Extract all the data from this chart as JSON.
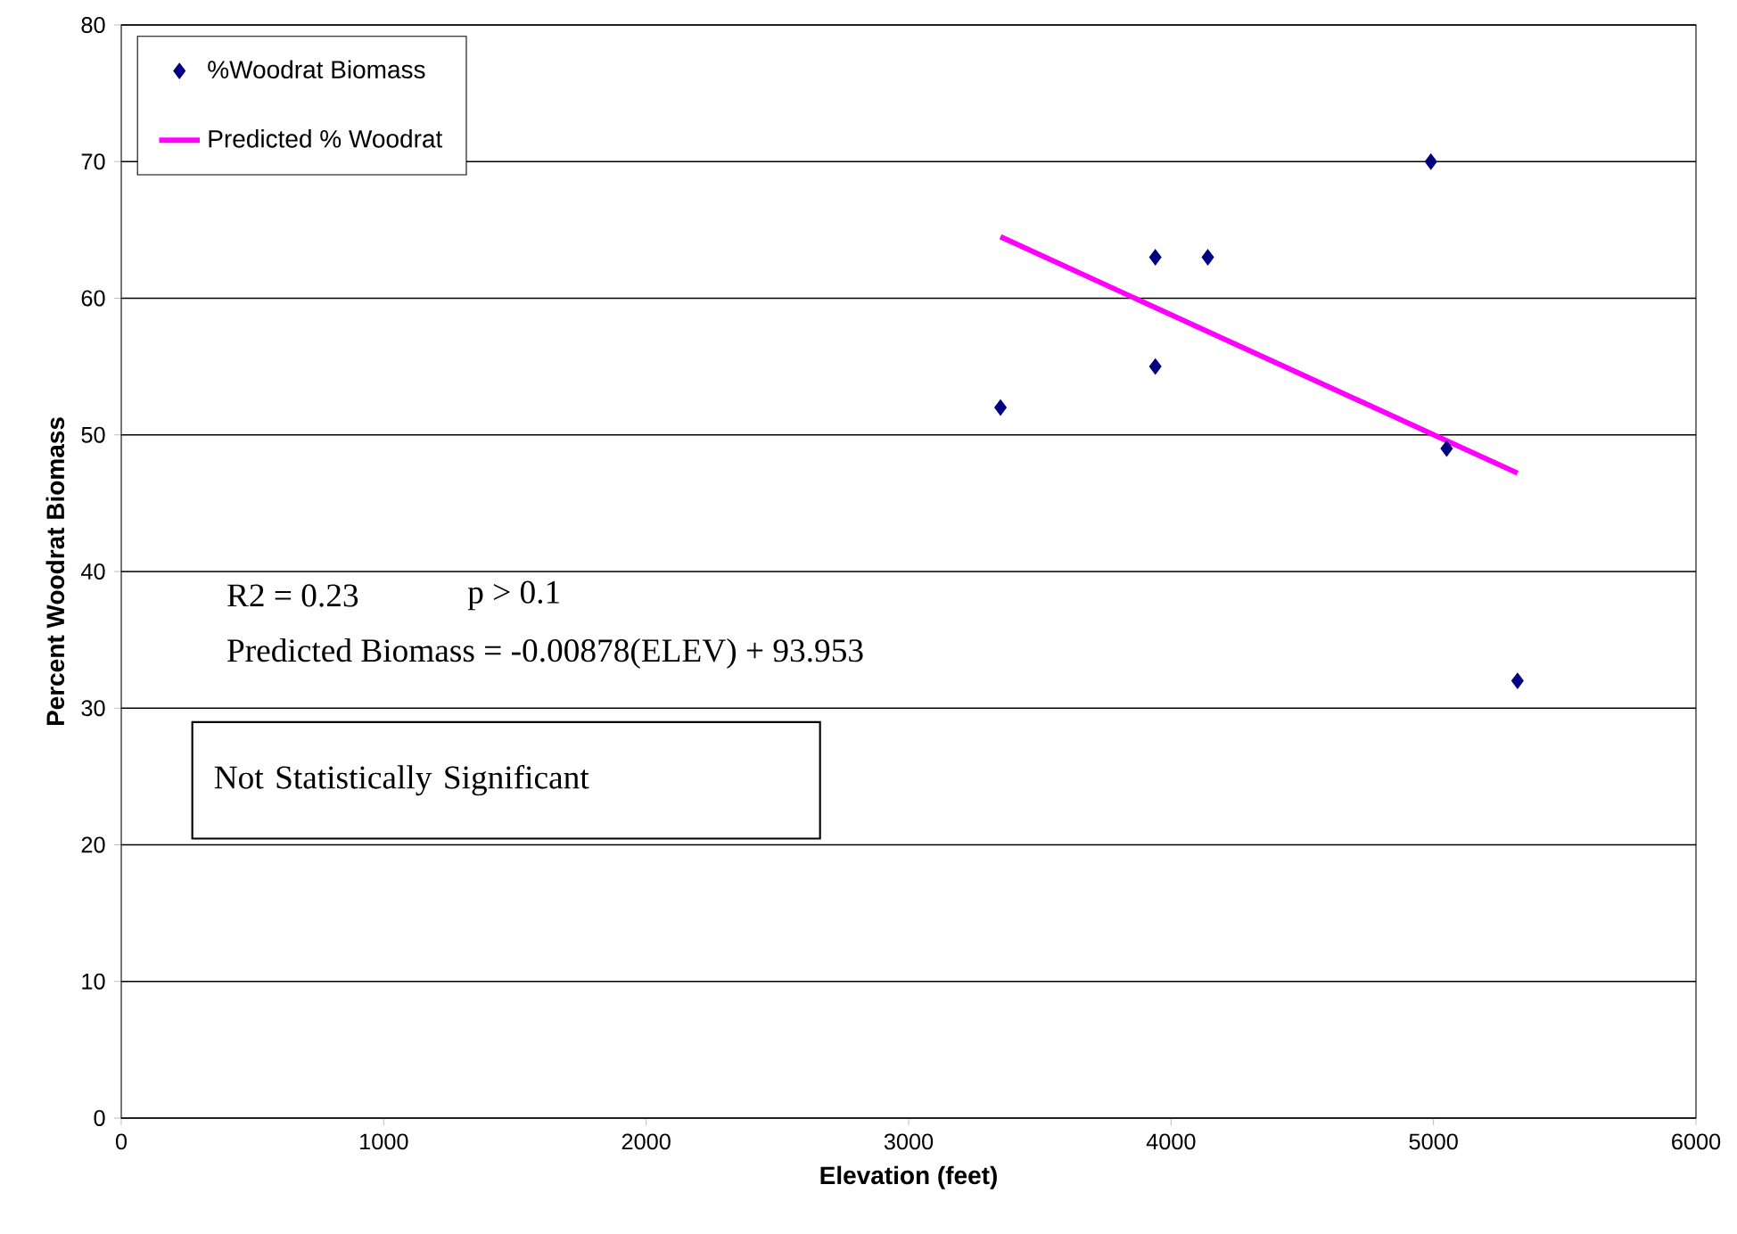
{
  "chart_data": {
    "type": "scatter",
    "xlabel": "Elevation (feet)",
    "ylabel": "Percent Woodrat Biomass",
    "xlim": [
      0,
      6000
    ],
    "xticks": [
      0,
      1000,
      2000,
      3000,
      4000,
      5000,
      6000
    ],
    "ylim": [
      0,
      80
    ],
    "yticks": [
      0,
      10,
      20,
      30,
      40,
      50,
      60,
      70,
      80
    ],
    "grid": "y",
    "legend": "top left",
    "series": [
      {
        "name": "%Woodrat Biomass",
        "marker": "diamond",
        "color": "#000080",
        "x": [
          3350,
          3940,
          3940,
          4140,
          4990,
          5050,
          5320
        ],
        "values": [
          52,
          63,
          55,
          63,
          70,
          49,
          32
        ]
      },
      {
        "name": "Predicted % Woodrat",
        "type": "line",
        "marker": "none",
        "color": "#ff00ff",
        "x": [
          3350,
          5320
        ],
        "values": [
          64.5,
          47.2
        ]
      }
    ],
    "annotations": [
      "R2 = 0.23",
      "p > 0.1",
      "Predicted Biomass = -0.00878(ELEV) + 93.953",
      "Not Statistically Significant"
    ]
  }
}
